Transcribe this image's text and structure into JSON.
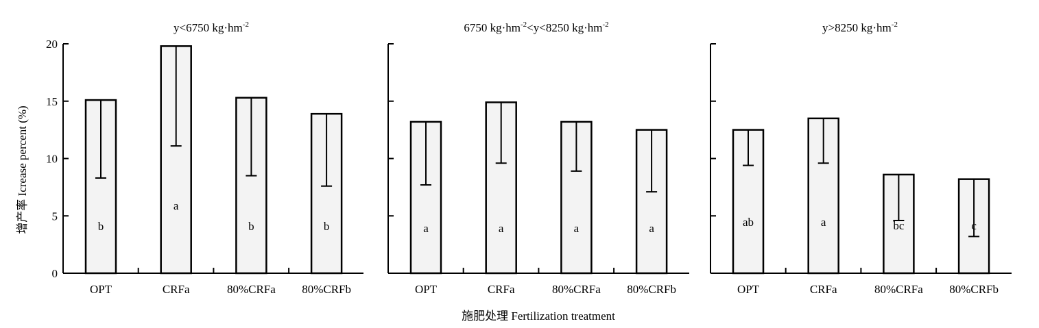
{
  "figure": {
    "ylabel": "增产率 Icrease percent (%)",
    "xlabel": "施肥处理 Fertilization treatment",
    "y_ticks": [
      "0",
      "5",
      "10",
      "15",
      "20"
    ]
  },
  "chart_data": [
    {
      "type": "bar",
      "title": "y<6750 kg·hm-2",
      "title_parts": {
        "main": "y<6750 kg·hm",
        "sup": "-2",
        "tail": ""
      },
      "categories": [
        "OPT",
        "CRFa",
        "80%CRFa",
        "80%CRFb"
      ],
      "values": [
        15.1,
        19.8,
        15.3,
        13.9
      ],
      "error_lower": [
        8.3,
        11.1,
        8.5,
        7.6
      ],
      "significance": [
        "b",
        "a",
        "b",
        "b"
      ],
      "ylim": [
        0,
        20
      ]
    },
    {
      "type": "bar",
      "title": "6750 kg·hm-2<y<8250 kg·hm-2",
      "title_parts": {
        "main": "6750 kg·hm",
        "sup": "-2",
        "tail": "<y<8250 kg·hm",
        "sup2": "-2"
      },
      "categories": [
        "OPT",
        "CRFa",
        "80%CRFa",
        "80%CRFb"
      ],
      "values": [
        13.2,
        14.9,
        13.2,
        12.5
      ],
      "error_lower": [
        7.7,
        9.6,
        8.9,
        7.1
      ],
      "significance": [
        "a",
        "a",
        "a",
        "a"
      ],
      "ylim": [
        0,
        20
      ]
    },
    {
      "type": "bar",
      "title": "y>8250 kg·hm-2",
      "title_parts": {
        "main": "y>8250 kg·hm",
        "sup": "-2",
        "tail": ""
      },
      "categories": [
        "OPT",
        "CRFa",
        "80%CRFa",
        "80%CRFb"
      ],
      "values": [
        12.5,
        13.5,
        8.6,
        8.2
      ],
      "error_lower": [
        9.4,
        9.6,
        4.6,
        3.2
      ],
      "significance": [
        "ab",
        "a",
        "bc",
        "c"
      ],
      "ylim": [
        0,
        20
      ]
    }
  ]
}
